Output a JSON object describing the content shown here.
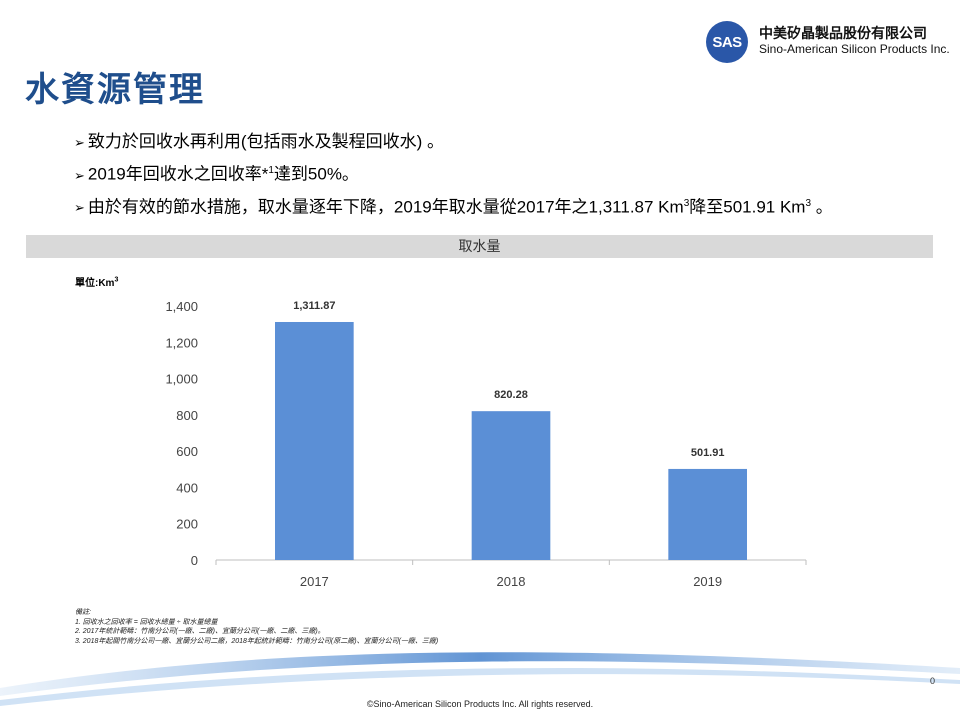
{
  "logo": {
    "badge": "SAS",
    "name_zh": "中美矽晶製品股份有限公司",
    "name_en": "Sino-American Silicon Products Inc."
  },
  "title": "水資源管理",
  "bullets": [
    {
      "text": "致力於回收水再利用(包括雨水及製程回收水) 。"
    },
    {
      "pre": "2019年回收水之回收率*",
      "sup": "1",
      "post": "達到50%。"
    },
    {
      "pre": "由於有效的節水措施，取水量逐年下降，2019年取水量從2017年之1,311.87 Km",
      "sup": "3",
      "mid": "降至501.91 Km",
      "sup2": "3",
      "post": " 。"
    }
  ],
  "band_title": "取水量",
  "unit": {
    "label": "單位:Km",
    "sup": "3"
  },
  "chart_data": {
    "type": "bar",
    "title": "取水量",
    "categories": [
      "2017",
      "2018",
      "2019"
    ],
    "values": [
      1311.87,
      820.28,
      501.91
    ],
    "value_labels": [
      "1,311.87",
      "820.28",
      "501.91"
    ],
    "ylim": [
      0,
      1400
    ],
    "yticks": [
      "0",
      "200",
      "400",
      "600",
      "800",
      "1,000",
      "1,200",
      "1,400"
    ],
    "bar_color": "#5b8fd6",
    "grid": false
  },
  "notes": [
    "備註:",
    "1. 回收水之回收率 = 回收水總量 ÷ 取水量總量",
    "2. 2017年統計範疇：竹南分公司(一廠、二廠)、宜蘭分公司(一廠、二廠、三廠)。",
    "3. 2018年起關竹南分公司一廠、宜蘭分公司二廠，2018年起統計範疇：竹南分公司(原二廠)、宜蘭分公司(一廠、三廠)"
  ],
  "page_number": "0",
  "footer": "©Sino-American Silicon Products Inc.  All rights reserved."
}
